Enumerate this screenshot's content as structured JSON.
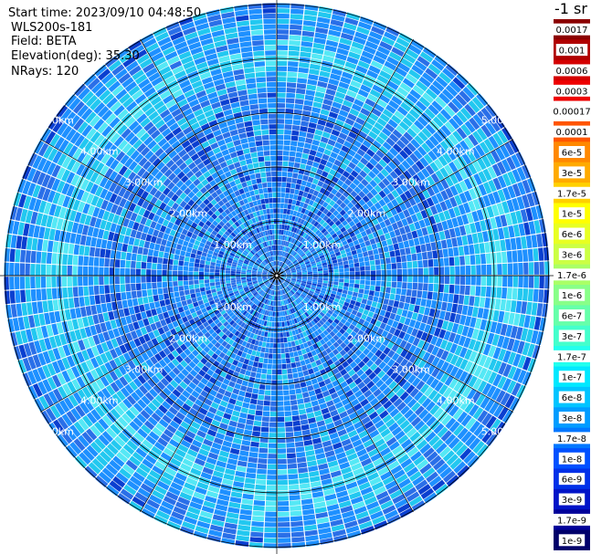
{
  "info": {
    "start_time": "Start time: 2023/09/10 04:48:50",
    "device": "WLS200s-181",
    "field": "Field: BETA",
    "elevation": "Elevation(deg): 35.30",
    "nrays": "NRays: 120"
  },
  "chart_data": {
    "type": "heatmap",
    "projection": "polar-ppi",
    "ring_labels": [
      "1.00km",
      "2.00km",
      "3.00km",
      "4.00km",
      "5.00km"
    ],
    "ring_label_quadrants": [
      "upper-left",
      "upper-right",
      "lower-left",
      "lower-right"
    ],
    "colorbar": {
      "title": "-1 sr",
      "labels": [
        "0.0017",
        "0.001",
        "0.0006",
        "0.0003",
        "0.00017",
        "0.0001",
        "6e-5",
        "3e-5",
        "1.7e-5",
        "1e-5",
        "6e-6",
        "3e-6",
        "1.7e-6",
        "1e-6",
        "6e-7",
        "3e-7",
        "1.7e-7",
        "1e-7",
        "6e-8",
        "3e-8",
        "1.7e-8",
        "1e-8",
        "6e-9",
        "3e-9",
        "1.7e-9",
        "1e-9"
      ],
      "colors": [
        "#8b0000",
        "#b00000",
        "#d40000",
        "#ee0000",
        "#ffffff",
        "#ff5500",
        "#ff8800",
        "#ffaa00",
        "#ffd000",
        "#ffff00",
        "#e8ff22",
        "#ccff44",
        "#aaff66",
        "#88ff88",
        "#66ffaa",
        "#44ffcc",
        "#22ffee",
        "#00e8ff",
        "#00c4ff",
        "#009cff",
        "#0077ff",
        "#0050ff",
        "#0030e8",
        "#0014c8",
        "#00009a",
        "#00006a"
      ]
    },
    "dominant_colors": [
      "#1e90ff",
      "#2a6fe8",
      "#22c8f0",
      "#55e8f5",
      "#0a3fd0"
    ]
  }
}
